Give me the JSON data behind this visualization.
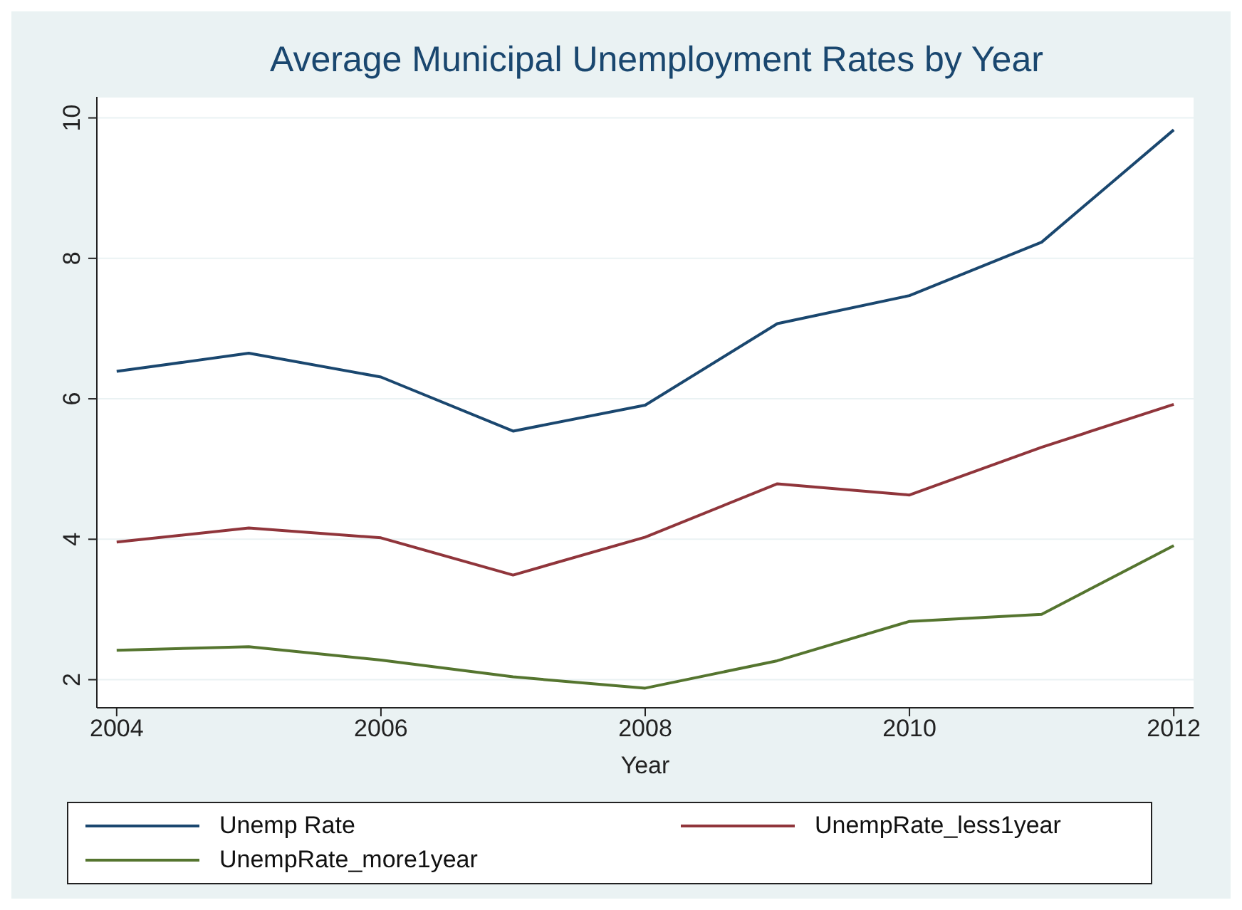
{
  "chart_data": {
    "type": "line",
    "title": "Average Municipal Unemployment Rates by Year",
    "xlabel": "Year",
    "x": [
      2004,
      2005,
      2006,
      2007,
      2008,
      2009,
      2010,
      2011,
      2012
    ],
    "series": [
      {
        "name": "Unemp Rate",
        "color": "#1a476f",
        "values": [
          6.39,
          6.65,
          6.31,
          5.54,
          5.91,
          7.07,
          7.47,
          8.23,
          9.83
        ]
      },
      {
        "name": "UnempRate_less1year",
        "color": "#90353b",
        "values": [
          3.96,
          4.16,
          4.02,
          3.49,
          4.03,
          4.79,
          4.63,
          5.31,
          5.92
        ]
      },
      {
        "name": "UnempRate_more1year",
        "color": "#55752f",
        "values": [
          2.42,
          2.47,
          2.28,
          2.04,
          1.88,
          2.27,
          2.83,
          2.93,
          3.91
        ]
      }
    ],
    "xlim": [
      2003.85,
      2012.15
    ],
    "xticks": [
      2004,
      2006,
      2008,
      2010,
      2012
    ],
    "ylim": [
      1.6,
      10.3
    ],
    "yticks": [
      2,
      4,
      6,
      8,
      10
    ],
    "grid": "y",
    "legend": "bottom",
    "marker": "none",
    "line_style": "solid"
  }
}
